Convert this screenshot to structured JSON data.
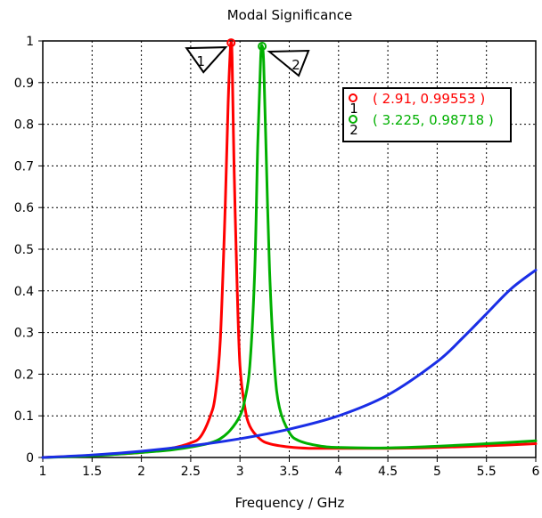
{
  "chart_data": {
    "type": "line",
    "title": "Modal Significance",
    "xlabel": "Frequency / GHz",
    "ylabel": "",
    "xlim": [
      1,
      6
    ],
    "ylim": [
      0,
      1
    ],
    "xticks": [
      "1",
      "1.5",
      "2",
      "2.5",
      "3",
      "3.5",
      "4",
      "4.5",
      "5",
      "5.5",
      "6"
    ],
    "yticks": [
      "0",
      "0.1",
      "0.2",
      "0.3",
      "0.4",
      "0.5",
      "0.6",
      "0.7",
      "0.8",
      "0.9",
      "1"
    ],
    "grid": true,
    "series": [
      {
        "color": "#ff0000",
        "x": [
          1.0,
          1.5,
          2.0,
          2.3,
          2.5,
          2.6,
          2.7,
          2.75,
          2.8,
          2.85,
          2.88,
          2.9,
          2.91,
          2.92,
          2.94,
          2.97,
          3.0,
          3.05,
          3.1,
          3.2,
          3.3,
          3.5,
          3.7,
          4.0,
          4.5,
          5.0,
          5.5,
          6.0
        ],
        "y": [
          0.0,
          0.005,
          0.012,
          0.022,
          0.035,
          0.05,
          0.1,
          0.15,
          0.28,
          0.6,
          0.85,
          0.97,
          0.9955,
          0.96,
          0.7,
          0.42,
          0.22,
          0.12,
          0.075,
          0.045,
          0.033,
          0.025,
          0.022,
          0.022,
          0.022,
          0.024,
          0.028,
          0.033
        ]
      },
      {
        "color": "#00b000",
        "x": [
          1.0,
          1.5,
          2.0,
          2.3,
          2.5,
          2.7,
          2.8,
          2.9,
          3.0,
          3.05,
          3.1,
          3.15,
          3.18,
          3.21,
          3.225,
          3.24,
          3.26,
          3.3,
          3.35,
          3.4,
          3.5,
          3.6,
          3.8,
          4.0,
          4.5,
          5.0,
          5.5,
          6.0
        ],
        "y": [
          0.0,
          0.004,
          0.012,
          0.018,
          0.025,
          0.035,
          0.045,
          0.065,
          0.1,
          0.14,
          0.22,
          0.45,
          0.75,
          0.96,
          0.9872,
          0.95,
          0.78,
          0.45,
          0.22,
          0.12,
          0.06,
          0.04,
          0.028,
          0.024,
          0.023,
          0.027,
          0.033,
          0.04
        ]
      },
      {
        "color": "#1a2ee6",
        "x": [
          1.0,
          1.5,
          2.0,
          2.5,
          3.0,
          3.5,
          4.0,
          4.5,
          5.0,
          5.25,
          5.5,
          5.75,
          6.0
        ],
        "y": [
          0.0,
          0.006,
          0.015,
          0.028,
          0.045,
          0.068,
          0.1,
          0.15,
          0.23,
          0.285,
          0.345,
          0.405,
          0.45
        ]
      }
    ],
    "markers": [
      {
        "label": "1",
        "x": 2.91,
        "y": 0.99553,
        "color": "#ff0000",
        "readout": "( 2.91, 0.99553 )"
      },
      {
        "label": "2",
        "x": 3.225,
        "y": 0.98718,
        "color": "#00b000",
        "readout": "( 3.225, 0.98718 )"
      }
    ]
  }
}
